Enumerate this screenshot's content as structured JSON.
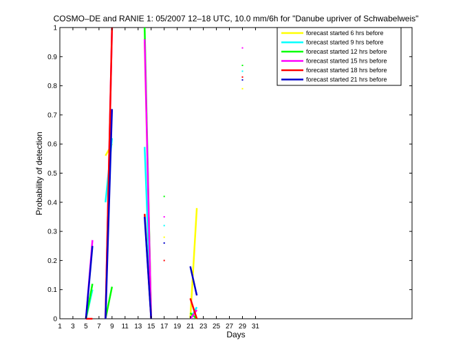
{
  "chart_data": {
    "type": "line",
    "title": "COSMO–DE and RANIE 1: 05/2007 12–18 UTC, 10.0 mm/6h for \"Danube upriver of Schwabelweis\"",
    "xlabel": "Days",
    "ylabel": "Probability of detection",
    "xlim": [
      1,
      55
    ],
    "ylim": [
      0,
      1
    ],
    "x_ticks": [
      1,
      3,
      5,
      7,
      9,
      11,
      13,
      15,
      17,
      19,
      21,
      23,
      25,
      27,
      29,
      31
    ],
    "y_ticks": [
      0,
      0.1,
      0.2,
      0.3,
      0.4,
      0.5,
      0.6,
      0.7,
      0.8,
      0.9,
      1
    ],
    "y_tick_labels": [
      "0",
      "0.1",
      "0.2",
      "0.3",
      "0.4",
      "0.5",
      "0.6",
      "0.7",
      "0.8",
      "0.9",
      "1"
    ],
    "legend_position": "top-right",
    "grid": false,
    "series": [
      {
        "name": "forecast started 6 hrs before",
        "color": "#ffff00",
        "points": [
          [
            5,
            0
          ],
          [
            6,
            0.1
          ],
          null,
          [
            8,
            0.56
          ],
          [
            9,
            0.6
          ],
          null,
          [
            14,
            0.95
          ],
          [
            15,
            0
          ],
          null,
          [
            17,
            0.28
          ],
          null,
          [
            21,
            0
          ],
          [
            22,
            0.38
          ],
          null,
          [
            29,
            0.79
          ]
        ]
      },
      {
        "name": "forecast started 9 hrs before",
        "color": "#00ffff",
        "points": [
          [
            5,
            0
          ],
          [
            6,
            0.1
          ],
          null,
          [
            8,
            0.4
          ],
          [
            9,
            0.62
          ],
          null,
          [
            14,
            0.59
          ],
          [
            15,
            0
          ],
          null,
          [
            17,
            0.32
          ],
          null,
          [
            21,
            0
          ],
          [
            22,
            0.04
          ],
          null,
          [
            29,
            0.85
          ]
        ]
      },
      {
        "name": "forecast started 12 hrs before",
        "color": "#00ff00",
        "points": [
          [
            5,
            0
          ],
          [
            6,
            0.12
          ],
          null,
          [
            8,
            0
          ],
          [
            9,
            0.11
          ],
          null,
          [
            14,
            1
          ],
          [
            15,
            0
          ],
          null,
          [
            17,
            0.42
          ],
          null,
          [
            21,
            0.02
          ],
          [
            22,
            0
          ],
          null,
          [
            29,
            0.87
          ]
        ]
      },
      {
        "name": "forecast started 15 hrs before",
        "color": "#ff00ff",
        "points": [
          [
            5,
            0
          ],
          [
            6,
            0.27
          ],
          null,
          [
            8,
            0
          ],
          [
            9,
            1
          ],
          null,
          [
            14,
            0.96
          ],
          [
            15,
            0
          ],
          null,
          [
            17,
            0.35
          ],
          null,
          [
            21,
            0
          ],
          [
            22,
            0.03
          ],
          null,
          [
            29,
            0.93
          ]
        ]
      },
      {
        "name": "forecast started 18 hrs before",
        "color": "#ff0000",
        "points": [
          [
            5,
            0
          ],
          [
            6,
            0
          ],
          null,
          [
            8,
            0
          ],
          [
            9,
            1
          ],
          null,
          [
            14,
            0.36
          ],
          [
            15,
            0
          ],
          null,
          [
            17,
            0.2
          ],
          null,
          [
            21,
            0.07
          ],
          [
            22,
            0
          ],
          null,
          [
            29,
            0.83
          ]
        ]
      },
      {
        "name": "forecast started 21 hrs before",
        "color": "#0000cc",
        "points": [
          [
            5,
            0
          ],
          [
            6,
            0.25
          ],
          null,
          [
            8,
            0
          ],
          [
            9,
            0.72
          ],
          null,
          [
            14,
            0.35
          ],
          [
            15,
            0
          ],
          null,
          [
            17,
            0.26
          ],
          null,
          [
            21,
            0.18
          ],
          [
            22,
            0.08
          ],
          null,
          [
            29,
            0.82
          ]
        ]
      }
    ]
  }
}
